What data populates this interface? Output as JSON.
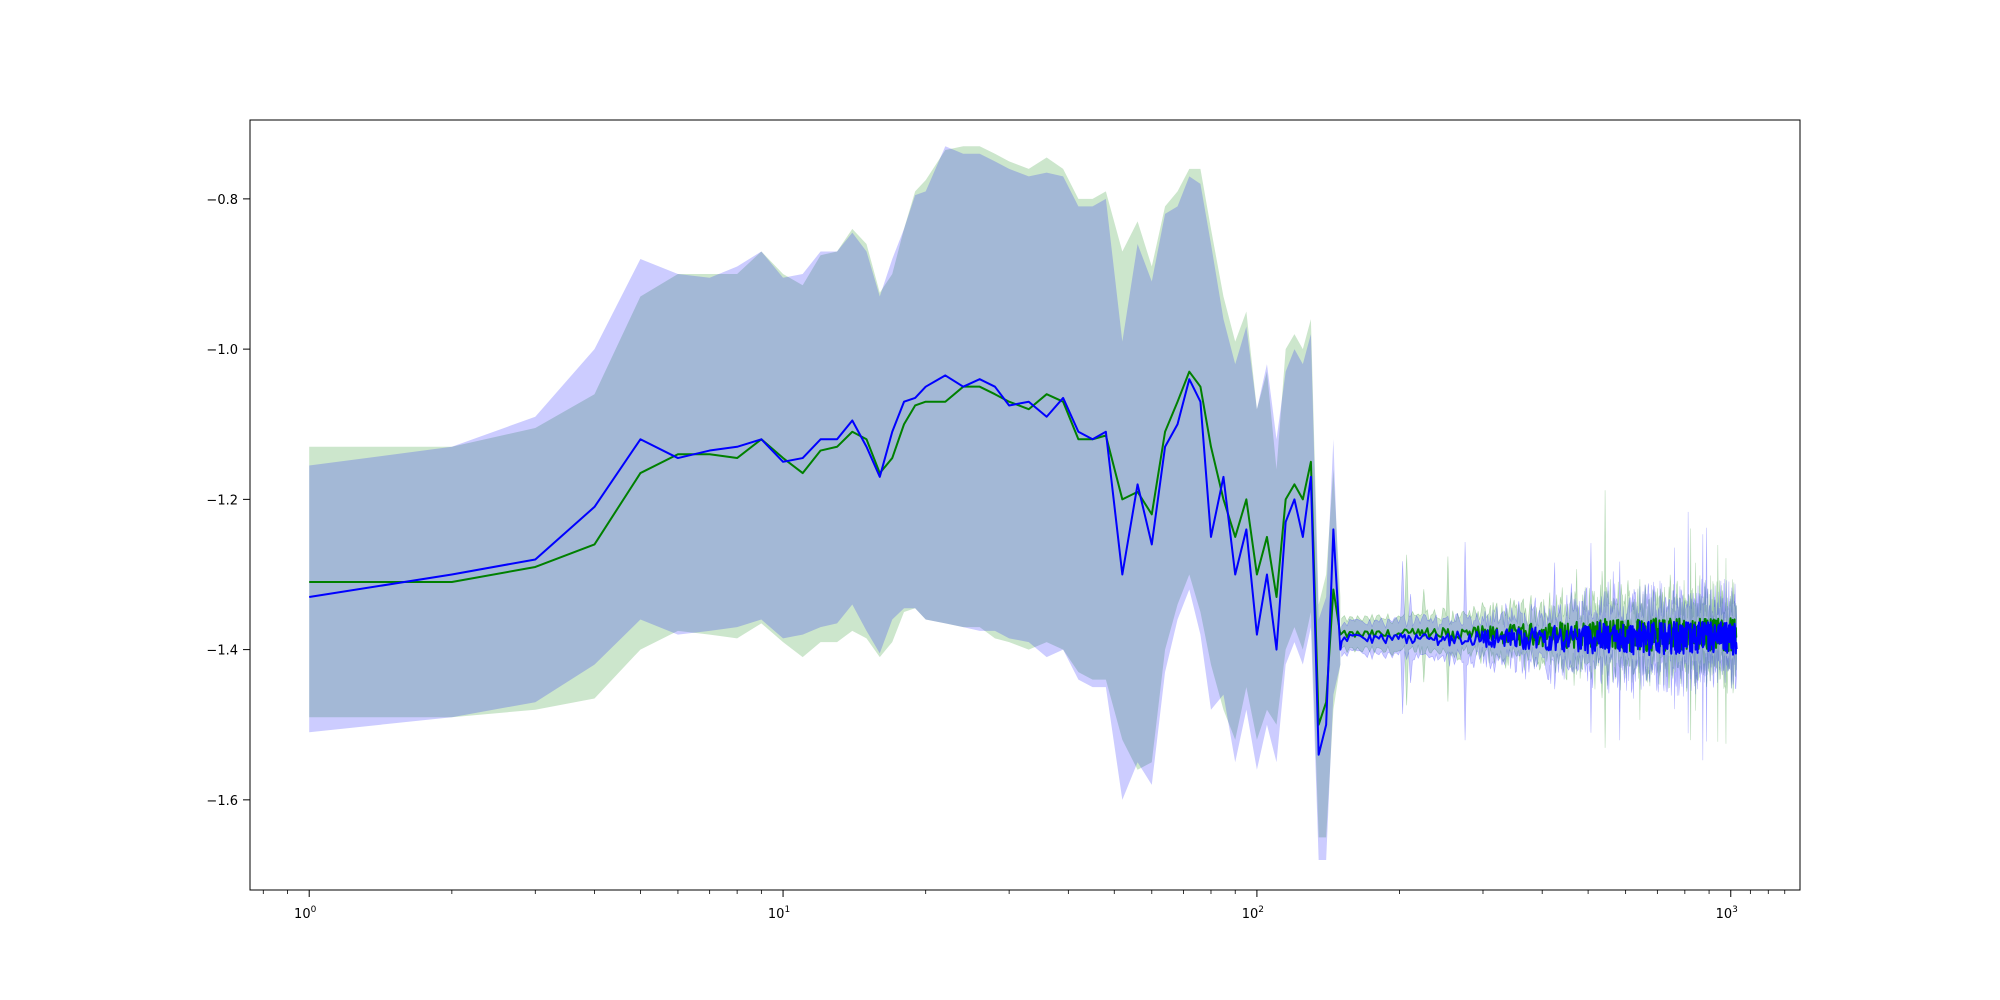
{
  "chart_data": {
    "type": "line",
    "title": "",
    "xlabel": "",
    "ylabel": "",
    "xscale": "log",
    "xlim": [
      0.75,
      1400
    ],
    "ylim": [
      -1.72,
      -0.695
    ],
    "grid": false,
    "legend": "none",
    "x_ticks": [
      {
        "value": 1,
        "base": "10",
        "exp": "0"
      },
      {
        "value": 10,
        "base": "10",
        "exp": "1"
      },
      {
        "value": 100,
        "base": "10",
        "exp": "2"
      },
      {
        "value": 1000,
        "base": "10",
        "exp": "3"
      }
    ],
    "y_ticks": [
      {
        "value": -0.8,
        "label": "−0.8"
      },
      {
        "value": -1.0,
        "label": "−1.0"
      },
      {
        "value": -1.2,
        "label": "−1.2"
      },
      {
        "value": -1.4,
        "label": "−1.4"
      },
      {
        "value": -1.6,
        "label": "−1.6"
      }
    ],
    "series": [
      {
        "color": "#008000",
        "band_color": "#008000",
        "band_opacity": 0.2,
        "x": [
          1,
          2,
          3,
          4,
          5,
          6,
          7,
          8,
          9,
          10,
          11,
          12,
          13,
          14,
          15,
          16,
          17,
          18,
          19,
          20,
          22,
          24,
          26,
          28,
          30,
          33,
          36,
          39,
          42,
          45,
          48,
          52,
          56,
          60,
          64,
          68,
          72,
          76,
          80,
          85,
          90,
          95,
          100,
          105,
          110,
          115,
          120,
          125,
          130,
          135,
          140,
          145,
          150
        ],
        "y": [
          -1.31,
          -1.31,
          -1.29,
          -1.26,
          -1.165,
          -1.14,
          -1.14,
          -1.145,
          -1.12,
          -1.145,
          -1.165,
          -1.135,
          -1.13,
          -1.11,
          -1.12,
          -1.165,
          -1.145,
          -1.1,
          -1.075,
          -1.07,
          -1.07,
          -1.05,
          -1.05,
          -1.06,
          -1.07,
          -1.08,
          -1.06,
          -1.07,
          -1.12,
          -1.12,
          -1.115,
          -1.2,
          -1.19,
          -1.22,
          -1.11,
          -1.07,
          -1.03,
          -1.05,
          -1.13,
          -1.2,
          -1.25,
          -1.2,
          -1.3,
          -1.25,
          -1.33,
          -1.2,
          -1.18,
          -1.2,
          -1.15,
          -1.5,
          -1.47,
          -1.32,
          -1.38
        ],
        "lower": [
          -1.49,
          -1.49,
          -1.48,
          -1.465,
          -1.4,
          -1.375,
          -1.38,
          -1.385,
          -1.365,
          -1.39,
          -1.41,
          -1.39,
          -1.39,
          -1.375,
          -1.385,
          -1.41,
          -1.39,
          -1.35,
          -1.345,
          -1.36,
          -1.365,
          -1.37,
          -1.37,
          -1.385,
          -1.39,
          -1.4,
          -1.39,
          -1.4,
          -1.43,
          -1.44,
          -1.44,
          -1.52,
          -1.56,
          -1.55,
          -1.4,
          -1.34,
          -1.3,
          -1.35,
          -1.42,
          -1.48,
          -1.52,
          -1.45,
          -1.52,
          -1.48,
          -1.5,
          -1.4,
          -1.37,
          -1.4,
          -1.35,
          -1.65,
          -1.65,
          -1.48,
          -1.42
        ],
        "upper": [
          -1.13,
          -1.13,
          -1.105,
          -1.06,
          -0.93,
          -0.9,
          -0.9,
          -0.9,
          -0.87,
          -0.9,
          -0.915,
          -0.875,
          -0.87,
          -0.84,
          -0.86,
          -0.925,
          -0.9,
          -0.84,
          -0.79,
          -0.775,
          -0.735,
          -0.73,
          -0.73,
          -0.74,
          -0.75,
          -0.76,
          -0.745,
          -0.76,
          -0.8,
          -0.8,
          -0.79,
          -0.87,
          -0.83,
          -0.89,
          -0.81,
          -0.79,
          -0.76,
          -0.76,
          -0.84,
          -0.93,
          -0.99,
          -0.95,
          -1.08,
          -1.03,
          -1.16,
          -1.0,
          -0.98,
          -1.0,
          -0.96,
          -1.34,
          -1.3,
          -1.16,
          -1.33
        ]
      },
      {
        "color": "#0000ff",
        "band_color": "#0000ff",
        "band_opacity": 0.2,
        "x": [
          1,
          2,
          3,
          4,
          5,
          6,
          7,
          8,
          9,
          10,
          11,
          12,
          13,
          14,
          15,
          16,
          17,
          18,
          19,
          20,
          22,
          24,
          26,
          28,
          30,
          33,
          36,
          39,
          42,
          45,
          48,
          52,
          56,
          60,
          64,
          68,
          72,
          76,
          80,
          85,
          90,
          95,
          100,
          105,
          110,
          115,
          120,
          125,
          130,
          135,
          140,
          145,
          150
        ],
        "y": [
          -1.33,
          -1.3,
          -1.28,
          -1.21,
          -1.12,
          -1.145,
          -1.135,
          -1.13,
          -1.12,
          -1.15,
          -1.145,
          -1.12,
          -1.12,
          -1.095,
          -1.13,
          -1.17,
          -1.11,
          -1.07,
          -1.065,
          -1.05,
          -1.035,
          -1.05,
          -1.04,
          -1.05,
          -1.075,
          -1.07,
          -1.09,
          -1.065,
          -1.11,
          -1.12,
          -1.11,
          -1.3,
          -1.18,
          -1.26,
          -1.13,
          -1.1,
          -1.04,
          -1.07,
          -1.25,
          -1.17,
          -1.3,
          -1.24,
          -1.38,
          -1.3,
          -1.4,
          -1.23,
          -1.2,
          -1.25,
          -1.17,
          -1.54,
          -1.5,
          -1.24,
          -1.4
        ],
        "lower": [
          -1.51,
          -1.49,
          -1.47,
          -1.42,
          -1.36,
          -1.38,
          -1.375,
          -1.37,
          -1.36,
          -1.385,
          -1.38,
          -1.37,
          -1.365,
          -1.34,
          -1.375,
          -1.405,
          -1.36,
          -1.345,
          -1.345,
          -1.36,
          -1.365,
          -1.37,
          -1.375,
          -1.375,
          -1.385,
          -1.39,
          -1.41,
          -1.4,
          -1.44,
          -1.45,
          -1.45,
          -1.6,
          -1.55,
          -1.58,
          -1.43,
          -1.36,
          -1.32,
          -1.38,
          -1.48,
          -1.46,
          -1.55,
          -1.48,
          -1.56,
          -1.5,
          -1.55,
          -1.42,
          -1.39,
          -1.42,
          -1.37,
          -1.68,
          -1.68,
          -1.46,
          -1.42
        ],
        "upper": [
          -1.155,
          -1.13,
          -1.09,
          -1.0,
          -0.88,
          -0.9,
          -0.905,
          -0.89,
          -0.87,
          -0.905,
          -0.9,
          -0.87,
          -0.87,
          -0.845,
          -0.87,
          -0.93,
          -0.88,
          -0.84,
          -0.795,
          -0.79,
          -0.73,
          -0.74,
          -0.74,
          -0.75,
          -0.76,
          -0.77,
          -0.765,
          -0.77,
          -0.81,
          -0.81,
          -0.8,
          -0.99,
          -0.86,
          -0.91,
          -0.82,
          -0.81,
          -0.77,
          -0.78,
          -0.86,
          -0.96,
          -1.02,
          -0.97,
          -1.08,
          -1.02,
          -1.12,
          -1.03,
          -1.0,
          -1.02,
          -0.98,
          -1.36,
          -1.33,
          -1.12,
          -1.38
        ]
      }
    ]
  }
}
